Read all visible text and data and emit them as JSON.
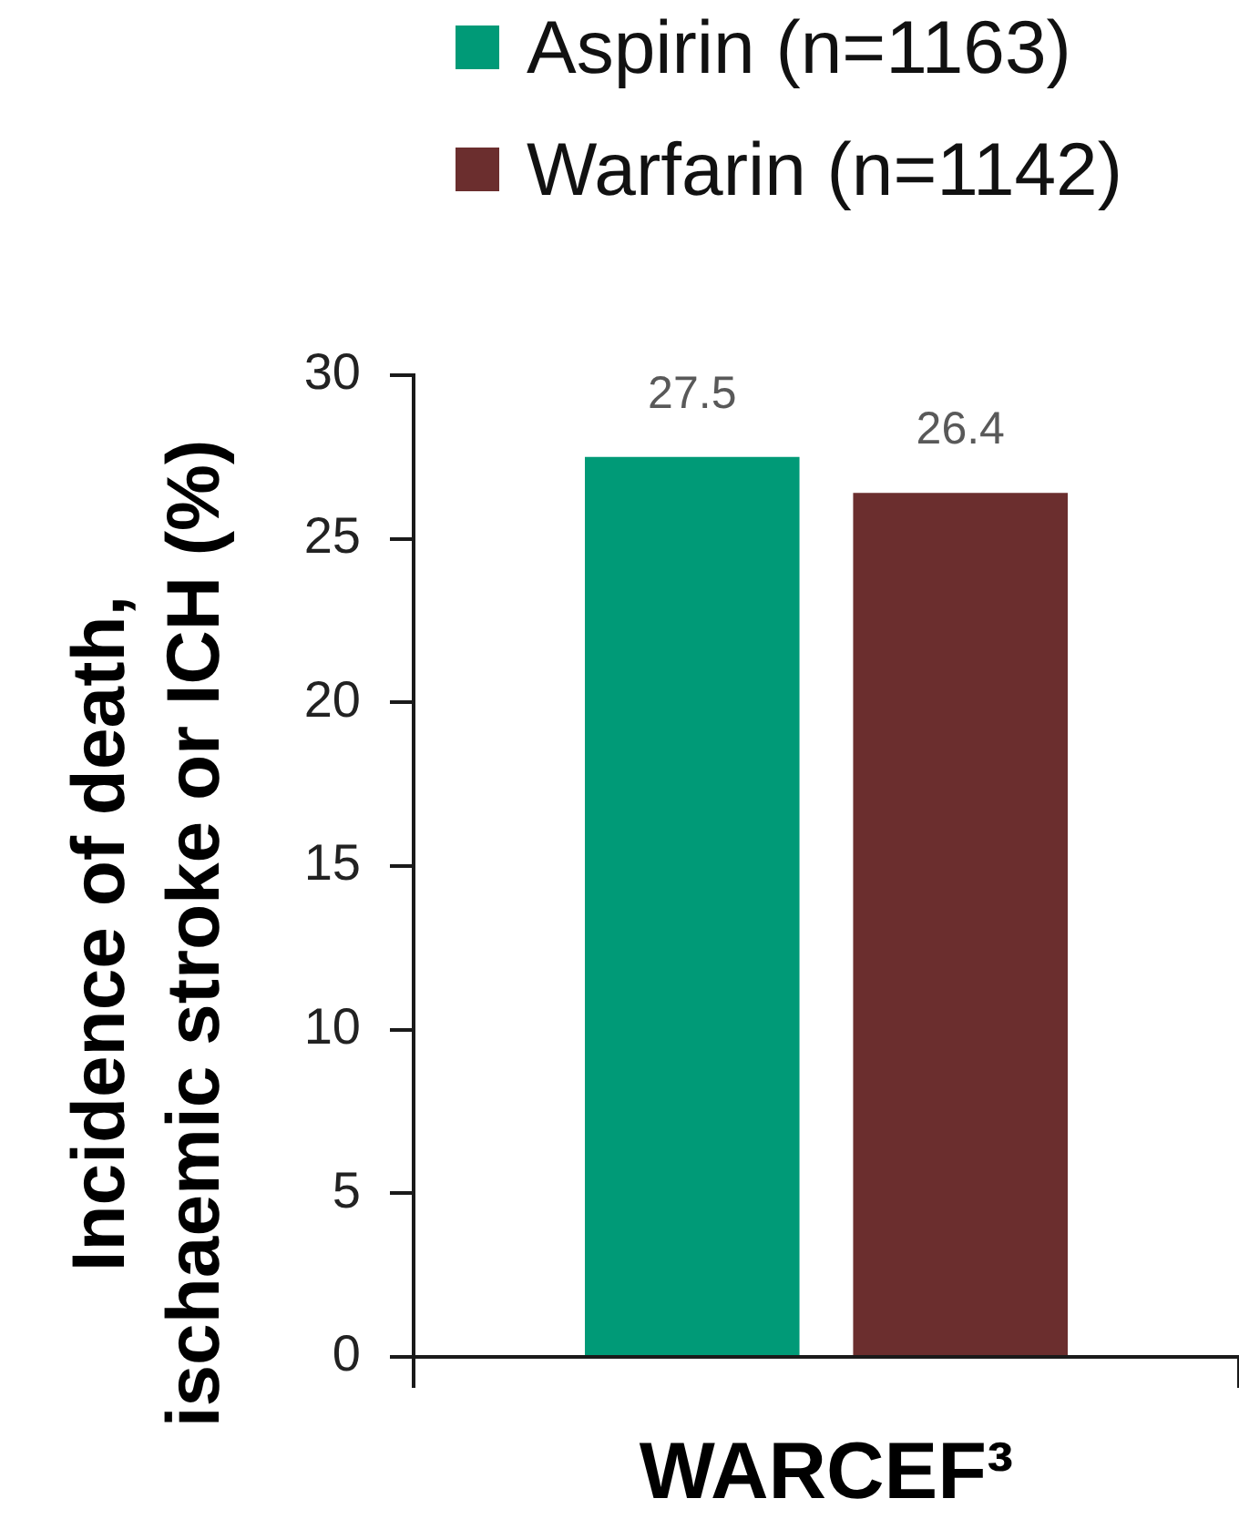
{
  "chart_data": {
    "type": "bar",
    "categories": [
      "WARCEF³"
    ],
    "series": [
      {
        "name": "Aspirin (n=1163)",
        "color": "#009a77",
        "values": [
          27.5
        ]
      },
      {
        "name": "Warfarin (n=1142)",
        "color": "#6b2e2e",
        "values": [
          26.4
        ]
      }
    ],
    "ylabel": "Incidence of death, ischaemic stroke or ICH (%)",
    "ylim": [
      0,
      30
    ],
    "yticks": [
      0,
      5,
      10,
      15,
      20,
      25,
      30
    ],
    "grid": false,
    "legend": "top",
    "data_labels": true
  }
}
